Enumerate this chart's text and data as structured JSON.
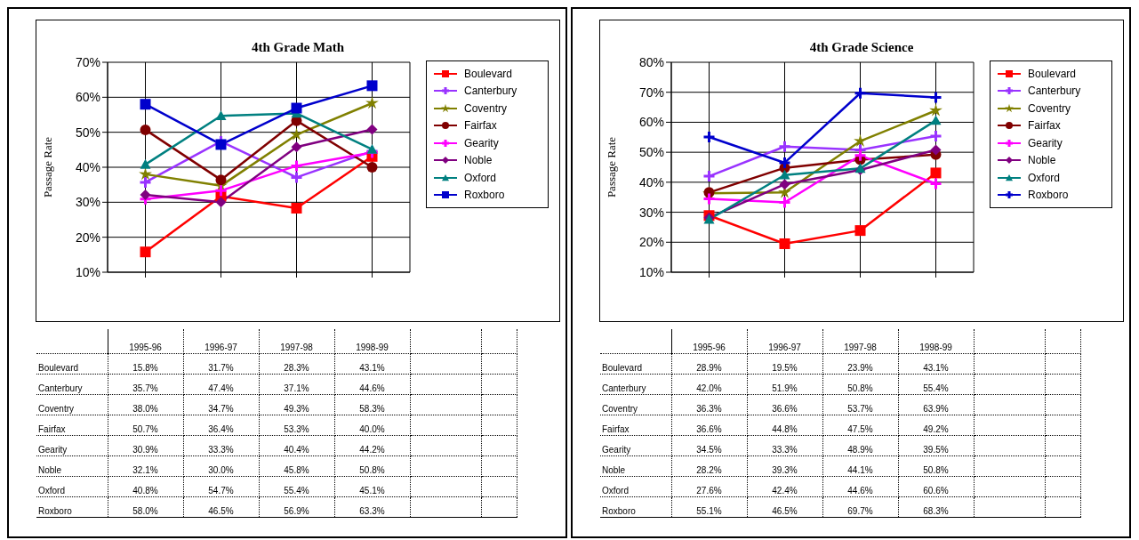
{
  "chart_data": [
    {
      "type": "line",
      "title": "4th Grade Math",
      "ylabel": "Passage Rate",
      "categories": [
        "1995-96",
        "1996-97",
        "1997-98",
        "1998-99"
      ],
      "ylim": [
        10,
        70
      ],
      "yticks": [
        {
          "value": 10,
          "label": "10%"
        },
        {
          "value": 20,
          "label": "20%"
        },
        {
          "value": 30,
          "label": "30%"
        },
        {
          "value": 40,
          "label": "40%"
        },
        {
          "value": 50,
          "label": "50%"
        },
        {
          "value": 60,
          "label": "60%"
        },
        {
          "value": 70,
          "label": "70%"
        }
      ],
      "grid": true,
      "legend": "right",
      "tick_labels": "y",
      "series": [
        {
          "name": "Boulevard",
          "color": "#ff0000",
          "marker": "square",
          "values": [
            15.8,
            31.7,
            28.3,
            43.1
          ],
          "value_labels": [
            "15.8%",
            "31.7%",
            "28.3%",
            "43.1%"
          ]
        },
        {
          "name": "Canterbury",
          "color": "#9933ff",
          "marker": "cross",
          "values": [
            35.7,
            47.4,
            37.1,
            44.6
          ],
          "value_labels": [
            "35.7%",
            "47.4%",
            "37.1%",
            "44.6%"
          ]
        },
        {
          "name": "Coventry",
          "color": "#808000",
          "marker": "star",
          "values": [
            38.0,
            34.7,
            49.3,
            58.3
          ],
          "value_labels": [
            "38.0%",
            "34.7%",
            "49.3%",
            "58.3%"
          ]
        },
        {
          "name": "Fairfax",
          "color": "#800000",
          "marker": "circle",
          "values": [
            50.7,
            36.4,
            53.3,
            40.0
          ],
          "value_labels": [
            "50.7%",
            "36.4%",
            "53.3%",
            "40.0%"
          ]
        },
        {
          "name": "Gearity",
          "color": "#ff00ff",
          "marker": "cross",
          "values": [
            30.9,
            33.3,
            40.4,
            44.2
          ],
          "value_labels": [
            "30.9%",
            "33.3%",
            "40.4%",
            "44.2%"
          ]
        },
        {
          "name": "Noble",
          "color": "#800080",
          "marker": "diamond",
          "values": [
            32.1,
            30.0,
            45.8,
            50.8
          ],
          "value_labels": [
            "32.1%",
            "30.0%",
            "45.8%",
            "50.8%"
          ]
        },
        {
          "name": "Oxford",
          "color": "#008080",
          "marker": "triangle",
          "values": [
            40.8,
            54.7,
            55.4,
            45.1
          ],
          "value_labels": [
            "40.8%",
            "54.7%",
            "55.4%",
            "45.1%"
          ]
        },
        {
          "name": "Roxboro",
          "color": "#0000cc",
          "marker": "square",
          "values": [
            58.0,
            46.5,
            56.9,
            63.3
          ],
          "value_labels": [
            "58.0%",
            "46.5%",
            "56.9%",
            "63.3%"
          ]
        }
      ]
    },
    {
      "type": "line",
      "title": "4th Grade Science",
      "ylabel": "Passage Rate",
      "categories": [
        "1995-96",
        "1996-97",
        "1997-98",
        "1998-99"
      ],
      "ylim": [
        10,
        80
      ],
      "yticks": [
        {
          "value": 10,
          "label": "10%"
        },
        {
          "value": 20,
          "label": "20%"
        },
        {
          "value": 30,
          "label": "30%"
        },
        {
          "value": 40,
          "label": "40%"
        },
        {
          "value": 50,
          "label": "50%"
        },
        {
          "value": 60,
          "label": "60%"
        },
        {
          "value": 70,
          "label": "70%"
        },
        {
          "value": 80,
          "label": "80%"
        }
      ],
      "grid": true,
      "legend": "right",
      "tick_labels": "y",
      "series": [
        {
          "name": "Boulevard",
          "color": "#ff0000",
          "marker": "square",
          "values": [
            28.9,
            19.5,
            23.9,
            43.1
          ],
          "value_labels": [
            "28.9%",
            "19.5%",
            "23.9%",
            "43.1%"
          ]
        },
        {
          "name": "Canterbury",
          "color": "#9933ff",
          "marker": "cross",
          "values": [
            42.0,
            51.9,
            50.8,
            55.4
          ],
          "value_labels": [
            "42.0%",
            "51.9%",
            "50.8%",
            "55.4%"
          ]
        },
        {
          "name": "Coventry",
          "color": "#808000",
          "marker": "star",
          "values": [
            36.3,
            36.6,
            53.7,
            63.9
          ],
          "value_labels": [
            "36.3%",
            "36.6%",
            "53.7%",
            "63.9%"
          ]
        },
        {
          "name": "Fairfax",
          "color": "#800000",
          "marker": "circle",
          "values": [
            36.6,
            44.8,
            47.5,
            49.2
          ],
          "value_labels": [
            "36.6%",
            "44.8%",
            "47.5%",
            "49.2%"
          ]
        },
        {
          "name": "Gearity",
          "color": "#ff00ff",
          "marker": "cross",
          "values": [
            34.5,
            33.3,
            48.9,
            39.5
          ],
          "value_labels": [
            "34.5%",
            "33.3%",
            "48.9%",
            "39.5%"
          ]
        },
        {
          "name": "Noble",
          "color": "#800080",
          "marker": "diamond",
          "values": [
            28.2,
            39.3,
            44.1,
            50.8
          ],
          "value_labels": [
            "28.2%",
            "39.3%",
            "44.1%",
            "50.8%"
          ]
        },
        {
          "name": "Oxford",
          "color": "#008080",
          "marker": "triangle",
          "values": [
            27.6,
            42.4,
            44.6,
            60.6
          ],
          "value_labels": [
            "27.6%",
            "42.4%",
            "44.6%",
            "60.6%"
          ]
        },
        {
          "name": "Roxboro",
          "color": "#0000cc",
          "marker": "cross",
          "values": [
            55.1,
            46.5,
            69.7,
            68.3
          ],
          "value_labels": [
            "55.1%",
            "46.5%",
            "69.7%",
            "68.3%"
          ]
        }
      ]
    }
  ]
}
